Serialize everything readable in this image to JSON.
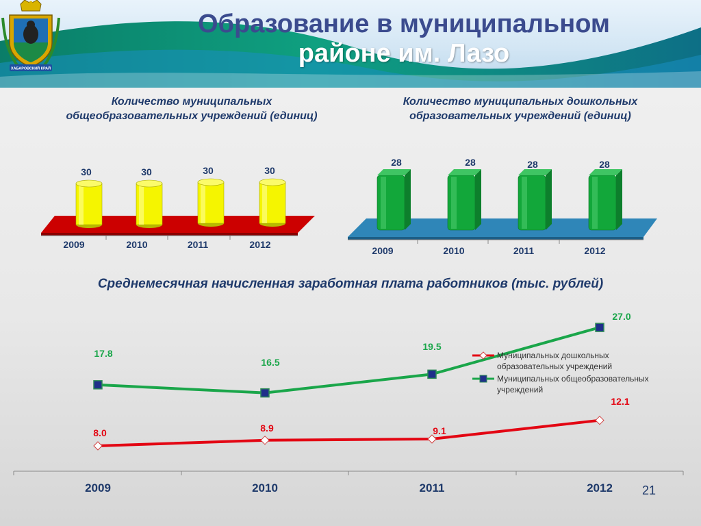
{
  "slide": {
    "title_line1": "Образование в муниципальном",
    "title_line2": "районе им. Лазо",
    "page_number": "21",
    "emblem_text": "ХАБАРОВСКИЙ КРАЙ"
  },
  "colors": {
    "header_band": "#0d8a73",
    "title_blue": "#3b4b8e",
    "text_blue": "#1f3a6b",
    "cylinder_yellow": "#f5f500",
    "floor_red": "#cc0000",
    "box_green": "#12a73a",
    "floor_blue": "#2f86b8",
    "line_red": "#e30613",
    "line_green": "#1aa64a",
    "marker_navy": "#1f2f8a"
  },
  "chart_data": [
    {
      "type": "bar",
      "title": "Количество муниципальных общеобразовательных учреждений (единиц)",
      "categories": [
        "2009",
        "2010",
        "2011",
        "2012"
      ],
      "values": [
        30,
        30,
        30,
        30
      ],
      "value_labels": [
        "30",
        "30",
        "30",
        "30"
      ],
      "shape": "cylinder"
    },
    {
      "type": "bar",
      "title": "Количество муниципальных дошкольных образовательных учреждений (единиц)",
      "categories": [
        "2009",
        "2010",
        "2011",
        "2012"
      ],
      "values": [
        28,
        28,
        28,
        28
      ],
      "value_labels": [
        "28",
        "28",
        "28",
        "28"
      ],
      "shape": "box"
    },
    {
      "type": "line",
      "title": "Среднемесячная начисленная заработная плата работников (тыс. рублей)",
      "categories": [
        "2009",
        "2010",
        "2011",
        "2012"
      ],
      "legend_position": "right",
      "series": [
        {
          "name": "Муниципальных дошкольных образовательных учреждений",
          "values": [
            8.0,
            8.9,
            9.1,
            12.1
          ],
          "value_labels": [
            "8.0",
            "8.9",
            "9.1",
            "12.1"
          ],
          "color": "#e30613",
          "marker": "diamond"
        },
        {
          "name": "Муниципальных общеобразовательных учреждений",
          "values": [
            17.8,
            16.5,
            19.5,
            27.0
          ],
          "value_labels": [
            "17.8",
            "16.5",
            "19.5",
            "27.0"
          ],
          "color": "#1aa64a",
          "marker": "square"
        }
      ]
    }
  ]
}
